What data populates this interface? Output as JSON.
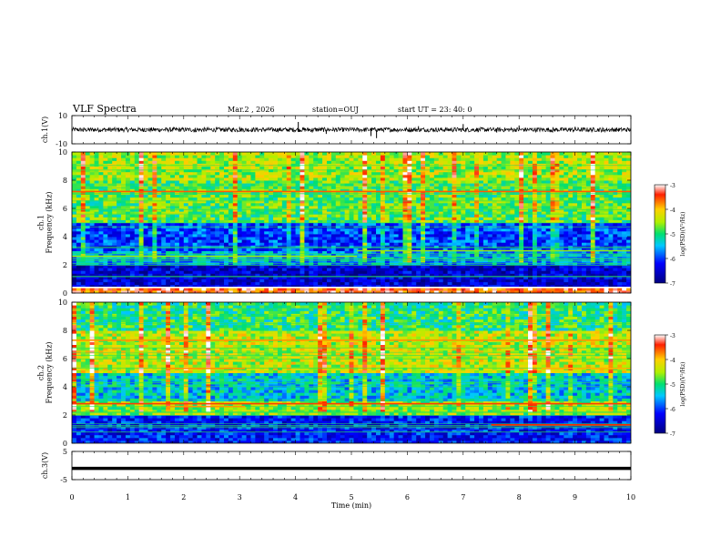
{
  "header": {
    "title": "VLF Spectra",
    "date": "Mar.2 , 2026",
    "station": "station=OUJ",
    "start": "start UT = 23: 40: 0"
  },
  "chart_data": [
    {
      "type": "line",
      "name": "ch1-waveform",
      "ylabel": "ch.1(V)",
      "ylim": [
        -10,
        10
      ],
      "yticks": [
        -10,
        10
      ],
      "xlim": [
        0,
        10
      ],
      "baseline": 0,
      "spikes": [
        {
          "x": 0.2,
          "y": -1.5
        },
        {
          "x": 1.3,
          "y": 1.2
        },
        {
          "x": 2.2,
          "y": -1.8
        },
        {
          "x": 3.0,
          "y": 2.0
        },
        {
          "x": 4.05,
          "y": 5.5
        },
        {
          "x": 4.3,
          "y": -2.0
        },
        {
          "x": 4.55,
          "y": -3.0
        },
        {
          "x": 5.35,
          "y": -4.5
        },
        {
          "x": 5.45,
          "y": -6.0
        },
        {
          "x": 6.2,
          "y": 2.5
        },
        {
          "x": 7.0,
          "y": 4.0
        },
        {
          "x": 7.6,
          "y": -2.0
        },
        {
          "x": 8.0,
          "y": 3.0
        },
        {
          "x": 8.6,
          "y": -2.0
        },
        {
          "x": 9.0,
          "y": 2.0
        },
        {
          "x": 9.5,
          "y": -1.5
        }
      ]
    },
    {
      "type": "heatmap",
      "name": "ch1-spectrogram",
      "ylabel": "ch.1\nFrequency (kHz)",
      "ylim": [
        0,
        10
      ],
      "yticks": [
        0,
        2,
        4,
        6,
        8,
        10
      ],
      "xlim": [
        0,
        10
      ],
      "colorbar": {
        "label": "log(PSD)(V²/Hz)",
        "range": [
          -7,
          -3
        ],
        "ticks": [
          -3,
          -4,
          -5,
          -6,
          -7
        ]
      },
      "bands": [
        {
          "f0": 8.0,
          "f1": 10.0,
          "level": -4.5
        },
        {
          "f0": 5.0,
          "f1": 8.0,
          "level": -4.8
        },
        {
          "f0": 3.0,
          "f1": 5.0,
          "level": -6.0
        },
        {
          "f0": 2.0,
          "f1": 3.0,
          "level": -5.6
        },
        {
          "f0": 0.5,
          "f1": 2.0,
          "level": -6.5
        },
        {
          "f0": 0.0,
          "f1": 0.5,
          "level": -3.5
        }
      ],
      "lines": [
        {
          "f": 7.2,
          "x0": 0,
          "x1": 10,
          "level": -3.6
        },
        {
          "f": 2.6,
          "x0": 0,
          "x1": 5.1,
          "level": -4.6
        },
        {
          "f": 3.0,
          "x0": 5.1,
          "x1": 10,
          "level": -4.6
        },
        {
          "f": 0.4,
          "x0": 0,
          "x1": 10,
          "level": -3.0
        }
      ]
    },
    {
      "type": "heatmap",
      "name": "ch2-spectrogram",
      "ylabel": "ch.2\nFrequency (kHz)",
      "ylim": [
        0,
        10
      ],
      "yticks": [
        0,
        2,
        4,
        6,
        8,
        10
      ],
      "xlim": [
        0,
        10
      ],
      "colorbar": {
        "label": "log(PSD)(V²/Hz)",
        "range": [
          -7,
          -3
        ],
        "ticks": [
          -3,
          -4,
          -5,
          -6,
          -7
        ]
      },
      "bands": [
        {
          "f0": 8.0,
          "f1": 10.0,
          "level": -5.0
        },
        {
          "f0": 5.0,
          "f1": 8.0,
          "level": -4.4
        },
        {
          "f0": 3.0,
          "f1": 5.0,
          "level": -5.4
        },
        {
          "f0": 2.0,
          "f1": 3.0,
          "level": -4.6
        },
        {
          "f0": 0.0,
          "f1": 2.0,
          "level": -6.2
        }
      ],
      "lines": [
        {
          "f": 5.3,
          "x0": 1.7,
          "x1": 3.1,
          "level": -3.8
        },
        {
          "f": 2.6,
          "x0": 1.7,
          "x1": 3.1,
          "level": -3.8
        },
        {
          "f": 5.3,
          "x0": 8.4,
          "x1": 10,
          "level": -3.9
        },
        {
          "f": 2.8,
          "x0": 0,
          "x1": 10,
          "level": -3.5
        },
        {
          "f": 1.3,
          "x0": 7.5,
          "x1": 10,
          "level": -3.4
        },
        {
          "f": 7.3,
          "x0": 0,
          "x1": 10,
          "level": -3.8
        }
      ]
    },
    {
      "type": "line",
      "name": "ch3-waveform",
      "ylabel": "ch.3(V)",
      "ylim": [
        -5,
        5
      ],
      "yticks": [
        -5,
        5
      ],
      "xlim": [
        0,
        10
      ],
      "baseline": -1,
      "xlabel": "Time (min)",
      "xticks": [
        0,
        1,
        2,
        3,
        4,
        5,
        6,
        7,
        8,
        9,
        10
      ]
    }
  ]
}
